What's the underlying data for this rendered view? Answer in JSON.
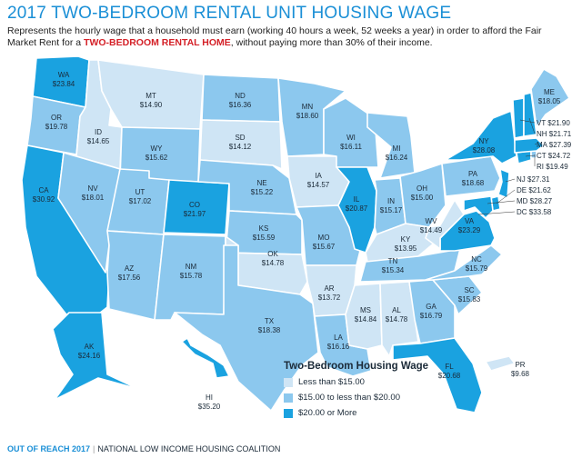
{
  "title": "2017 TWO-BEDROOM RENTAL UNIT HOUSING WAGE",
  "subtitle": {
    "pre": "Represents the hourly wage that a household must earn (working 40 hours a week, 52 weeks a year) in order to afford the Fair Market Rent for a ",
    "highlight": "TWO-BEDROOM RENTAL HOME",
    "post": ", without paying more than 30% of their income."
  },
  "colors": {
    "low": "#cfe5f5",
    "mid": "#8cc8ee",
    "high": "#1aa2e0",
    "title": "#1a8fd6",
    "highlight": "#d42027"
  },
  "states": [
    {
      "abbr": "WA",
      "wage": "$23.84",
      "tier": "high"
    },
    {
      "abbr": "OR",
      "wage": "$19.78",
      "tier": "mid"
    },
    {
      "abbr": "CA",
      "wage": "$30.92",
      "tier": "high"
    },
    {
      "abbr": "ID",
      "wage": "$14.65",
      "tier": "low"
    },
    {
      "abbr": "NV",
      "wage": "$18.01",
      "tier": "mid"
    },
    {
      "abbr": "MT",
      "wage": "$14.90",
      "tier": "low"
    },
    {
      "abbr": "WY",
      "wage": "$15.62",
      "tier": "mid"
    },
    {
      "abbr": "UT",
      "wage": "$17.02",
      "tier": "mid"
    },
    {
      "abbr": "AZ",
      "wage": "$17.56",
      "tier": "mid"
    },
    {
      "abbr": "CO",
      "wage": "$21.97",
      "tier": "high"
    },
    {
      "abbr": "NM",
      "wage": "$15.78",
      "tier": "mid"
    },
    {
      "abbr": "ND",
      "wage": "$16.36",
      "tier": "mid"
    },
    {
      "abbr": "SD",
      "wage": "$14.12",
      "tier": "low"
    },
    {
      "abbr": "NE",
      "wage": "$15.22",
      "tier": "mid"
    },
    {
      "abbr": "KS",
      "wage": "$15.59",
      "tier": "mid"
    },
    {
      "abbr": "OK",
      "wage": "$14.78",
      "tier": "low"
    },
    {
      "abbr": "TX",
      "wage": "$18.38",
      "tier": "mid"
    },
    {
      "abbr": "MN",
      "wage": "$18.60",
      "tier": "mid"
    },
    {
      "abbr": "IA",
      "wage": "$14.57",
      "tier": "low"
    },
    {
      "abbr": "MO",
      "wage": "$15.67",
      "tier": "mid"
    },
    {
      "abbr": "AR",
      "wage": "$13.72",
      "tier": "low"
    },
    {
      "abbr": "LA",
      "wage": "$16.16",
      "tier": "mid"
    },
    {
      "abbr": "WI",
      "wage": "$16.11",
      "tier": "mid"
    },
    {
      "abbr": "IL",
      "wage": "$20.87",
      "tier": "high"
    },
    {
      "abbr": "MI",
      "wage": "$16.24",
      "tier": "mid"
    },
    {
      "abbr": "IN",
      "wage": "$15.17",
      "tier": "mid"
    },
    {
      "abbr": "OH",
      "wage": "$15.00",
      "tier": "mid"
    },
    {
      "abbr": "KY",
      "wage": "$13.95",
      "tier": "low"
    },
    {
      "abbr": "TN",
      "wage": "$15.34",
      "tier": "mid"
    },
    {
      "abbr": "MS",
      "wage": "$14.84",
      "tier": "low"
    },
    {
      "abbr": "AL",
      "wage": "$14.78",
      "tier": "low"
    },
    {
      "abbr": "GA",
      "wage": "$16.79",
      "tier": "mid"
    },
    {
      "abbr": "FL",
      "wage": "$20.68",
      "tier": "high"
    },
    {
      "abbr": "SC",
      "wage": "$15.83",
      "tier": "mid"
    },
    {
      "abbr": "NC",
      "wage": "$15.79",
      "tier": "mid"
    },
    {
      "abbr": "VA",
      "wage": "$23.29",
      "tier": "high"
    },
    {
      "abbr": "WV",
      "wage": "$14.49",
      "tier": "low"
    },
    {
      "abbr": "PA",
      "wage": "$18.68",
      "tier": "mid"
    },
    {
      "abbr": "NY",
      "wage": "$28.08",
      "tier": "high"
    },
    {
      "abbr": "ME",
      "wage": "$18.05",
      "tier": "mid"
    },
    {
      "abbr": "AK",
      "wage": "$24.16",
      "tier": "high"
    },
    {
      "abbr": "HI",
      "wage": "$35.20",
      "tier": "high"
    },
    {
      "abbr": "PR",
      "wage": "$9.68",
      "tier": "low"
    }
  ],
  "northeast_labels": [
    {
      "text": "VT $21.90",
      "tier": "high"
    },
    {
      "text": "NH $21.71",
      "tier": "high"
    },
    {
      "text": "MA $27.39",
      "tier": "high"
    },
    {
      "text": "CT $24.72",
      "tier": "high"
    },
    {
      "text": "RI $19.49",
      "tier": "mid"
    },
    {
      "text": "NJ $27.31",
      "tier": "high"
    },
    {
      "text": "DE $21.62",
      "tier": "high"
    },
    {
      "text": "MD $28.27",
      "tier": "high"
    },
    {
      "text": "DC $33.58",
      "tier": "high"
    }
  ],
  "legend": {
    "title": "Two-Bedroom Housing Wage",
    "items": [
      {
        "label": "Less than $15.00",
        "tier": "low"
      },
      {
        "label": "$15.00 to less than $20.00",
        "tier": "mid"
      },
      {
        "label": "$20.00 or More",
        "tier": "high"
      }
    ]
  },
  "footer": {
    "brand": "OUT OF REACH 2017",
    "separator": "|",
    "org": "NATIONAL LOW INCOME HOUSING COALITION"
  }
}
